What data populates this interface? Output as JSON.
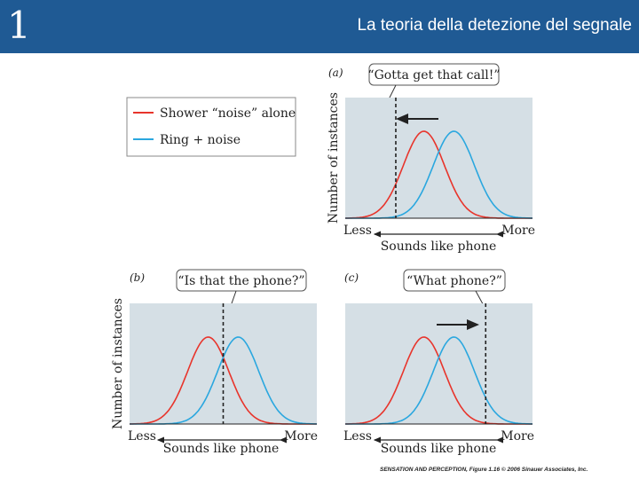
{
  "header": {
    "chapter": "1",
    "title": "La teoria della detezione del segnale"
  },
  "colors": {
    "header_bg": "#1f5a94",
    "panel_bg": "#d5dfe5",
    "noise_curve": "#e8342b",
    "signal_curve": "#2aa7df"
  },
  "legend": {
    "items": [
      {
        "label": "Shower “noise” alone",
        "color": "#e8342b"
      },
      {
        "label": "Ring + noise",
        "color": "#2aa7df"
      }
    ]
  },
  "axis": {
    "ylabel": "Number of instances",
    "x_less": "Less",
    "x_more": "More",
    "xlabel": "Sounds like phone"
  },
  "panels": [
    {
      "id": "a",
      "letter": "(a)",
      "caption": "“Gotta get that call!”",
      "criterion": 2.7,
      "shift": "left"
    },
    {
      "id": "b",
      "letter": "(b)",
      "caption": "“Is that the phone?”",
      "criterion": 5.0,
      "shift": "none"
    },
    {
      "id": "c",
      "letter": "(c)",
      "caption": "“What phone?”",
      "criterion": 7.5,
      "shift": "right"
    }
  ],
  "distributions": {
    "noise_mean": 4.2,
    "signal_mean": 5.8,
    "sd": 1.1
  },
  "credit": "SENSATION AND PERCEPTION, Figure 1.16 © 2006 Sinauer Associates, Inc."
}
